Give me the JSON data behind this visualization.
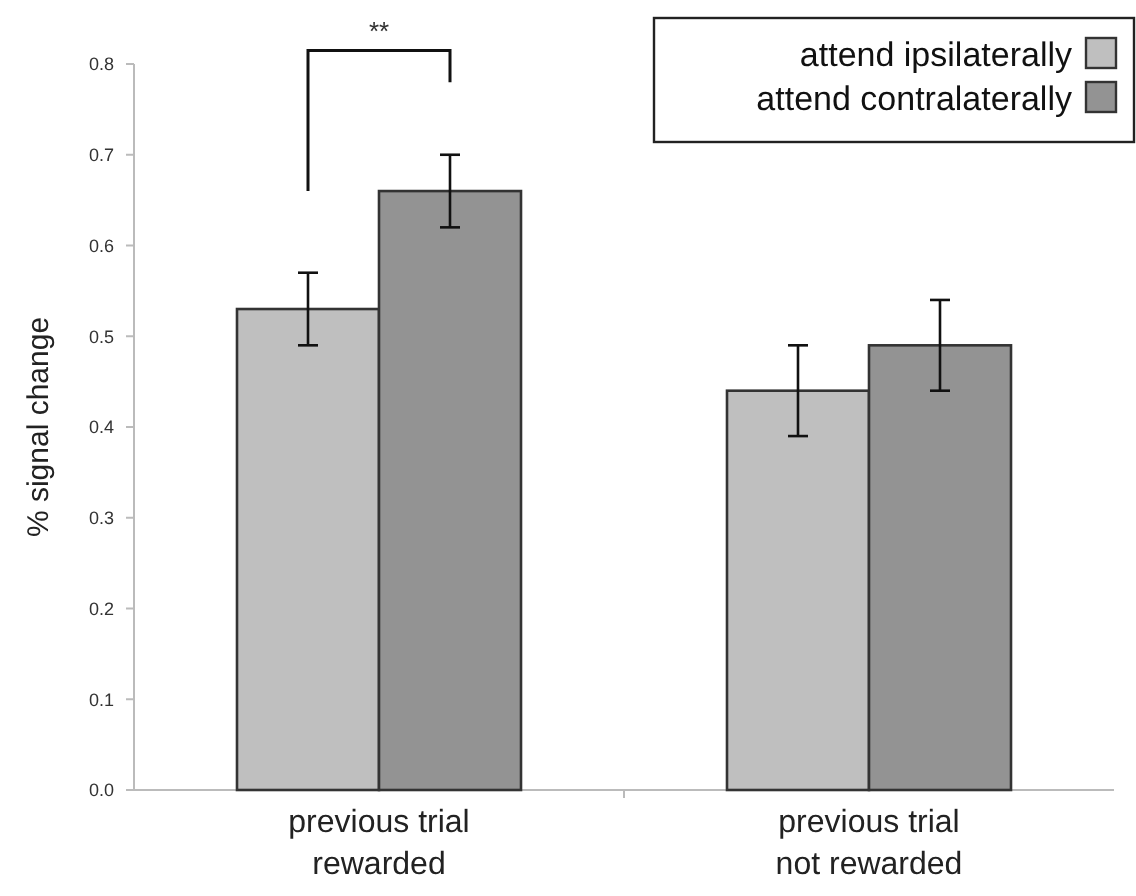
{
  "chart_data": {
    "type": "bar",
    "ylabel": "% signal change",
    "categories": [
      "previous trial\nrewarded",
      "previous trial\nnot rewarded"
    ],
    "series": [
      {
        "name": "attend ipsilaterally",
        "color": "#bfbfbf",
        "values": [
          0.53,
          0.44
        ],
        "errors": [
          0.04,
          0.05
        ]
      },
      {
        "name": "attend contralaterally",
        "color": "#939393",
        "values": [
          0.66,
          0.49
        ],
        "errors": [
          0.04,
          0.05
        ]
      }
    ],
    "ylim": [
      0,
      0.8
    ],
    "yticks": [
      {
        "value": 0,
        "label": "0.0"
      },
      0.1,
      0.2,
      0.3,
      0.4,
      0.5,
      0.6,
      0.7,
      0.8
    ],
    "grid": false,
    "legend": "top right",
    "annotations": [
      "**"
    ]
  }
}
